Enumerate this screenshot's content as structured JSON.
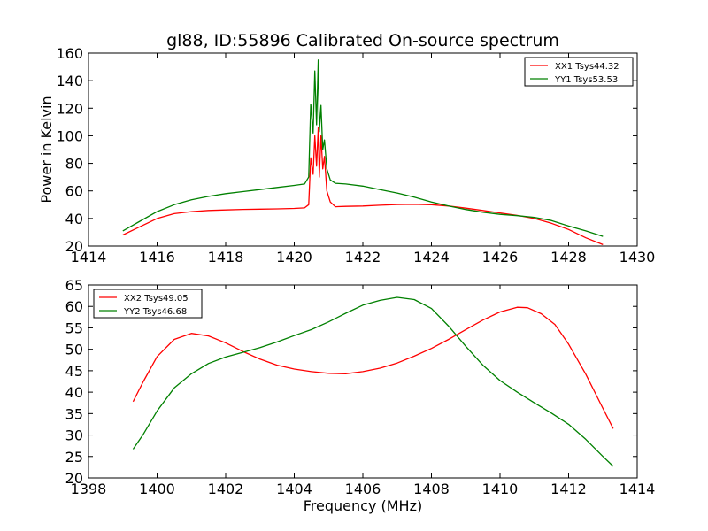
{
  "chart_data": [
    {
      "type": "line",
      "title": "gl88, ID:55896 Calibrated On-source spectrum",
      "xlabel": "",
      "ylabel": "Power in Kelvin",
      "xlim": [
        1414,
        1430
      ],
      "ylim": [
        20,
        160
      ],
      "xticks": [
        1414,
        1416,
        1418,
        1420,
        1422,
        1424,
        1426,
        1428,
        1430
      ],
      "yticks": [
        20,
        40,
        60,
        80,
        100,
        120,
        140,
        160
      ],
      "legend_position": "upper-right",
      "grid": false,
      "series": [
        {
          "name": "XX1 Tsys44.32",
          "color": "#ff0000",
          "x": [
            1415.0,
            1415.5,
            1416.0,
            1416.5,
            1417.0,
            1417.5,
            1418.0,
            1418.5,
            1419.0,
            1419.5,
            1420.0,
            1420.3,
            1420.42,
            1420.48,
            1420.55,
            1420.6,
            1420.65,
            1420.7,
            1420.73,
            1420.78,
            1420.83,
            1420.88,
            1420.95,
            1421.05,
            1421.2,
            1421.5,
            1422.0,
            1422.5,
            1423.0,
            1423.5,
            1424.0,
            1424.5,
            1425.0,
            1425.5,
            1426.0,
            1426.5,
            1427.0,
            1427.5,
            1428.0,
            1428.5,
            1429.0
          ],
          "y": [
            28,
            34,
            40,
            43.5,
            45,
            45.8,
            46.2,
            46.6,
            46.8,
            47,
            47.3,
            47.7,
            50,
            84,
            72,
            100,
            78,
            106,
            70,
            100,
            76,
            85,
            60,
            52,
            48.5,
            48.8,
            49,
            49.6,
            50.1,
            50.3,
            50,
            49,
            47.5,
            45.8,
            44,
            42.2,
            40,
            36.5,
            32,
            26,
            21
          ]
        },
        {
          "name": "YY1 Tsys53.53",
          "color": "#008000",
          "x": [
            1415.0,
            1415.5,
            1416.0,
            1416.5,
            1417.0,
            1417.5,
            1418.0,
            1418.5,
            1419.0,
            1419.5,
            1420.0,
            1420.3,
            1420.42,
            1420.48,
            1420.55,
            1420.6,
            1420.65,
            1420.7,
            1420.73,
            1420.78,
            1420.83,
            1420.88,
            1420.95,
            1421.05,
            1421.2,
            1421.5,
            1422.0,
            1422.5,
            1423.0,
            1423.5,
            1424.0,
            1424.5,
            1425.0,
            1425.5,
            1426.0,
            1426.5,
            1427.0,
            1427.5,
            1428.0,
            1428.5,
            1429.0
          ],
          "y": [
            31,
            38,
            45,
            50,
            53.5,
            56,
            58,
            59.5,
            61,
            62.5,
            64,
            65,
            70,
            123,
            102,
            147,
            108,
            155,
            103,
            122,
            90,
            97,
            76,
            68,
            65.5,
            65,
            63.5,
            61,
            58.5,
            55.5,
            52,
            49,
            46.5,
            44.5,
            43,
            42,
            40.8,
            38.5,
            34.5,
            31,
            27
          ]
        }
      ]
    },
    {
      "type": "line",
      "title": "",
      "xlabel": "Frequency (MHz)",
      "ylabel": "",
      "xlim": [
        1398,
        1414
      ],
      "ylim": [
        20,
        65
      ],
      "xticks": [
        1398,
        1400,
        1402,
        1404,
        1406,
        1408,
        1410,
        1412,
        1414
      ],
      "yticks": [
        20,
        25,
        30,
        35,
        40,
        45,
        50,
        55,
        60,
        65
      ],
      "legend_position": "upper-left",
      "grid": false,
      "series": [
        {
          "name": "XX2 Tsys49.05",
          "color": "#ff0000",
          "x": [
            1399.3,
            1399.6,
            1400.0,
            1400.5,
            1401.0,
            1401.5,
            1402.0,
            1402.5,
            1403.0,
            1403.5,
            1404.0,
            1404.5,
            1405.0,
            1405.5,
            1406.0,
            1406.5,
            1407.0,
            1407.5,
            1408.0,
            1408.5,
            1409.0,
            1409.5,
            1410.0,
            1410.5,
            1410.8,
            1411.2,
            1411.6,
            1412.0,
            1412.5,
            1413.0,
            1413.3
          ],
          "y": [
            37.8,
            42.5,
            48.3,
            52.3,
            53.7,
            53.1,
            51.5,
            49.5,
            47.7,
            46.3,
            45.4,
            44.8,
            44.4,
            44.3,
            44.8,
            45.6,
            46.8,
            48.4,
            50.2,
            52.3,
            54.6,
            56.8,
            58.7,
            59.8,
            59.7,
            58.3,
            55.8,
            51.2,
            44.2,
            36.2,
            31.5
          ]
        },
        {
          "name": "YY2 Tsys46.68",
          "color": "#008000",
          "x": [
            1399.3,
            1399.6,
            1400.0,
            1400.5,
            1401.0,
            1401.5,
            1402.0,
            1402.5,
            1403.0,
            1403.5,
            1404.0,
            1404.5,
            1405.0,
            1405.5,
            1406.0,
            1406.5,
            1407.0,
            1407.5,
            1408.0,
            1408.5,
            1409.0,
            1409.5,
            1410.0,
            1410.5,
            1411.0,
            1411.5,
            1412.0,
            1412.5,
            1413.0,
            1413.3
          ],
          "y": [
            26.7,
            30.2,
            35.6,
            41.0,
            44.3,
            46.7,
            48.2,
            49.3,
            50.4,
            51.7,
            53.2,
            54.6,
            56.4,
            58.4,
            60.3,
            61.4,
            62.1,
            61.6,
            59.5,
            55.4,
            50.7,
            46.3,
            42.7,
            40.0,
            37.5,
            35.1,
            32.5,
            29.0,
            25.0,
            22.7
          ]
        }
      ]
    }
  ]
}
